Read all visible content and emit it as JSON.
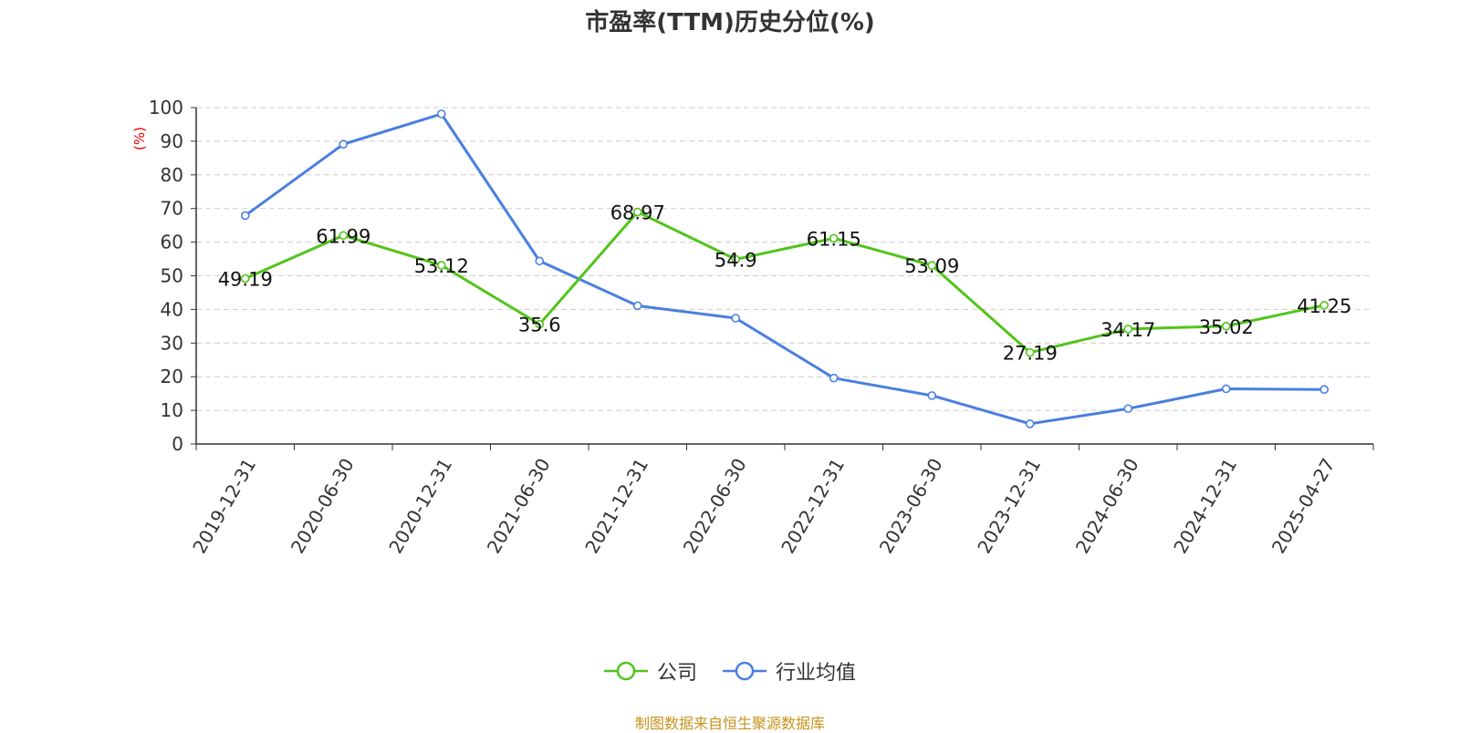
{
  "chart_data": {
    "type": "line",
    "title": "市盈率(TTM)历史分位(%)",
    "ylabel": "(%)",
    "ylim": [
      0,
      100
    ],
    "yticks": [
      0,
      10,
      20,
      30,
      40,
      50,
      60,
      70,
      80,
      90,
      100
    ],
    "grid": true,
    "legend_position": "bottom-center",
    "categories": [
      "2019-12-31",
      "2020-06-30",
      "2020-12-31",
      "2021-06-30",
      "2021-12-31",
      "2022-06-30",
      "2022-12-31",
      "2023-06-30",
      "2023-12-31",
      "2024-06-30",
      "2024-12-31",
      "2025-04-27"
    ],
    "series": [
      {
        "name": "公司",
        "color": "#52c41a",
        "values": [
          49.19,
          61.99,
          53.12,
          35.6,
          68.97,
          54.9,
          61.15,
          53.09,
          27.19,
          34.17,
          35.02,
          41.25
        ],
        "labels": [
          "49.19",
          "61.99",
          "53.12",
          "35.6",
          "68.97",
          "54.9",
          "61.15",
          "53.09",
          "27.19",
          "34.17",
          "35.02",
          "41.25"
        ]
      },
      {
        "name": "行业均值",
        "color": "#4a7fe0",
        "values": [
          67.9,
          89.1,
          98.1,
          54.4,
          41.1,
          37.4,
          19.6,
          14.4,
          6.0,
          10.5,
          16.4,
          16.2
        ]
      }
    ]
  },
  "source_text": "制图数据来自恒生聚源数据库"
}
